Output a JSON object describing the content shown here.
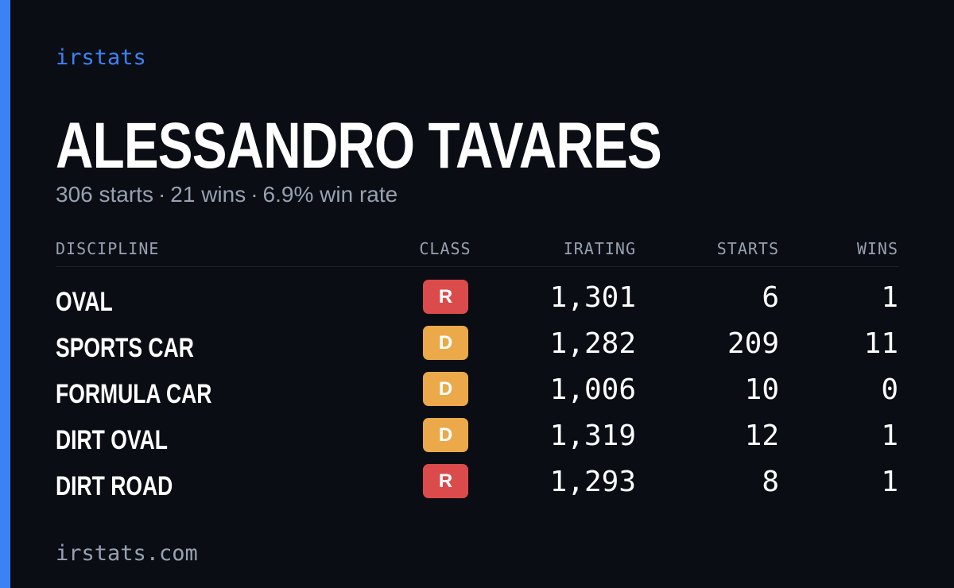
{
  "colors": {
    "accent": "#3b82f6",
    "background": "#0a0d14",
    "muted": "#98a1b1",
    "class_R": "#dc4b4b",
    "class_D": "#eba94a"
  },
  "brand": "irstats",
  "player": {
    "name": "ALESSANDRO TAVARES",
    "starts": "306 starts",
    "wins": "21 wins",
    "win_rate": "6.9% win rate",
    "separator": "·"
  },
  "table": {
    "headers": {
      "discipline": "DISCIPLINE",
      "class": "CLASS",
      "irating": "IRATING",
      "starts": "STARTS",
      "wins": "WINS"
    },
    "rows": [
      {
        "discipline": "OVAL",
        "class": "R",
        "irating": "1,301",
        "starts": "6",
        "wins": "1"
      },
      {
        "discipline": "SPORTS CAR",
        "class": "D",
        "irating": "1,282",
        "starts": "209",
        "wins": "11"
      },
      {
        "discipline": "FORMULA CAR",
        "class": "D",
        "irating": "1,006",
        "starts": "10",
        "wins": "0"
      },
      {
        "discipline": "DIRT OVAL",
        "class": "D",
        "irating": "1,319",
        "starts": "12",
        "wins": "1"
      },
      {
        "discipline": "DIRT ROAD",
        "class": "R",
        "irating": "1,293",
        "starts": "8",
        "wins": "1"
      }
    ]
  },
  "footer": {
    "url": "irstats.com"
  }
}
